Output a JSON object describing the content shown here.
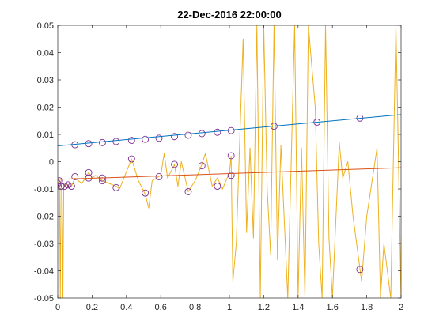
{
  "chart_data": {
    "type": "line",
    "title": "22-Dec-2016 22:00:00",
    "xlabel": "",
    "ylabel": "",
    "xlim": [
      0,
      2
    ],
    "ylim": [
      -0.05,
      0.05
    ],
    "x_ticks": [
      0,
      0.2,
      0.4,
      0.6,
      0.8,
      1,
      1.2,
      1.4,
      1.6,
      1.8,
      2
    ],
    "x_tick_labels": [
      "0",
      "0.2",
      "0.4",
      "0.6",
      "0.8",
      "1",
      "1.2",
      "1.4",
      "1.6",
      "1.8",
      "2"
    ],
    "y_ticks": [
      -0.05,
      -0.04,
      -0.03,
      -0.02,
      -0.01,
      0,
      0.01,
      0.02,
      0.03,
      0.04,
      0.05
    ],
    "y_tick_labels": [
      "-0.05",
      "-0.04",
      "-0.03",
      "-0.02",
      "-0.01",
      "0",
      "0.01",
      "0.02",
      "0.03",
      "0.04",
      "0.05"
    ],
    "grid": false,
    "legend": "none",
    "series": [
      {
        "kind": "line",
        "color": "#EDB120",
        "x": [
          0,
          0.01,
          0.015,
          0.02,
          0.025,
          0.03,
          0.035,
          0.04,
          0.05,
          0.06,
          0.08,
          0.1,
          0.14,
          0.18,
          0.2,
          0.22,
          0.26,
          0.3,
          0.34,
          0.36,
          0.43,
          0.47,
          0.51,
          0.53,
          0.55,
          0.6,
          0.62,
          0.64,
          0.68,
          0.7,
          0.72,
          0.76,
          0.78,
          0.8,
          0.84,
          0.86,
          0.9,
          0.93,
          0.96,
          1.0,
          1.01,
          1.02,
          1.04,
          1.08,
          1.1,
          1.12,
          1.14,
          1.16,
          1.18,
          1.2,
          1.22,
          1.24,
          1.26,
          1.28,
          1.3,
          1.34,
          1.38,
          1.4,
          1.42,
          1.44,
          1.46,
          1.5,
          1.52,
          1.54,
          1.56,
          1.58,
          1.6,
          1.64,
          1.66,
          1.69,
          1.72,
          1.76,
          1.77,
          1.8,
          1.86,
          1.88,
          1.9,
          1.94,
          1.97,
          2.0
        ],
        "y": [
          -0.008,
          -0.007,
          -0.05,
          -0.006,
          -0.009,
          -0.05,
          -0.008,
          -0.009,
          -0.008,
          -0.009,
          -0.009,
          -0.006,
          -0.008,
          -0.004,
          -0.006,
          -0.005,
          -0.007,
          -0.008,
          -0.009,
          -0.01,
          0.001,
          -0.007,
          -0.012,
          -0.017,
          -0.007,
          -0.005,
          0.003,
          -0.006,
          -0.001,
          -0.009,
          0.0,
          -0.011,
          -0.009,
          -0.007,
          -0.001,
          0.003,
          -0.009,
          -0.006,
          -0.01,
          -0.004,
          0.002,
          -0.044,
          -0.03,
          0.045,
          -0.026,
          0.005,
          -0.028,
          0.05,
          -0.05,
          0.05,
          -0.01,
          -0.034,
          0.05,
          -0.036,
          0.006,
          -0.05,
          0.05,
          -0.05,
          0.005,
          -0.05,
          0.05,
          0.02,
          -0.03,
          -0.05,
          0.05,
          -0.028,
          -0.05,
          0.007,
          -0.006,
          0.0,
          -0.02,
          -0.039,
          -0.044,
          -0.02,
          0.005,
          -0.05,
          -0.03,
          -0.05,
          0.05,
          -0.05
        ]
      },
      {
        "kind": "markers",
        "color": "#7E2F8E",
        "x": [
          0.0,
          0.01,
          0.02,
          0.04,
          0.06,
          0.08,
          0.1,
          0.18,
          0.18,
          0.26,
          0.26,
          0.34,
          0.43,
          0.51,
          0.59,
          0.68,
          0.76,
          0.84,
          0.93,
          1.01,
          1.01,
          1.76
        ],
        "y": [
          -0.008,
          -0.007,
          -0.009,
          -0.009,
          -0.0085,
          -0.009,
          -0.0055,
          -0.004,
          -0.006,
          -0.006,
          -0.007,
          -0.0095,
          0.001,
          -0.0115,
          -0.0055,
          -0.001,
          -0.011,
          -0.0015,
          -0.009,
          -0.005,
          0.0022,
          -0.0395
        ]
      },
      {
        "kind": "markers",
        "color": "#7E2F8E",
        "x": [
          0.1,
          0.18,
          0.26,
          0.34,
          0.43,
          0.51,
          0.59,
          0.68,
          0.76,
          0.84,
          0.93,
          1.01,
          1.26,
          1.51,
          1.76
        ],
        "y": [
          0.0062,
          0.0066,
          0.007,
          0.0074,
          0.0078,
          0.0082,
          0.0086,
          0.0092,
          0.0097,
          0.0103,
          0.0108,
          0.0114,
          0.013,
          0.0145,
          0.016
        ]
      },
      {
        "kind": "line",
        "color": "#0072BD",
        "x": [
          0,
          2
        ],
        "y": [
          0.0058,
          0.0173
        ]
      },
      {
        "kind": "line",
        "color": "#D95319",
        "x": [
          0,
          2
        ],
        "y": [
          -0.0065,
          -0.0022
        ]
      }
    ]
  }
}
